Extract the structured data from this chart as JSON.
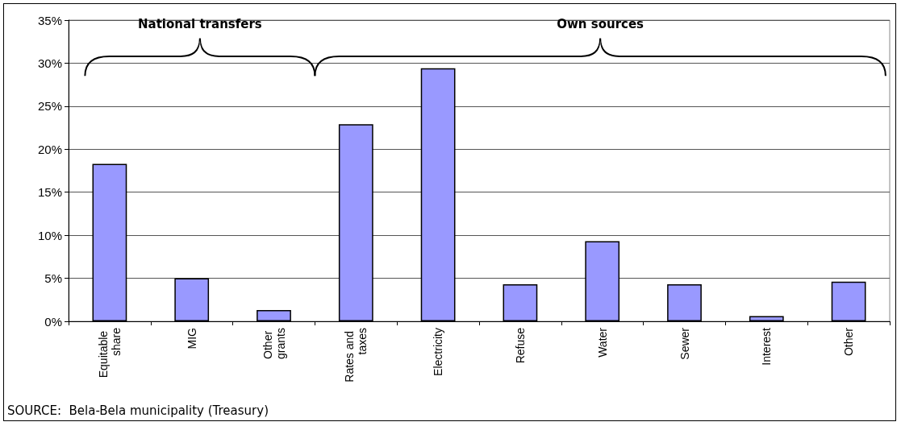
{
  "chart_data": {
    "type": "bar",
    "categories": [
      "Equitable share",
      "MIG",
      "Other grants",
      "Rates and taxes",
      "Electricity",
      "Refuse",
      "Water",
      "Sewer",
      "Interest",
      "Other"
    ],
    "values": [
      18.3,
      5.0,
      1.3,
      22.9,
      29.4,
      4.3,
      9.3,
      4.3,
      0.6,
      4.6
    ],
    "color": "#9999ff",
    "ylim": [
      0,
      35
    ],
    "yticks": [
      {
        "value": 0,
        "label": "0%"
      },
      {
        "value": 5,
        "label": "5%"
      },
      {
        "value": 10,
        "label": "10%"
      },
      {
        "value": 15,
        "label": "15%"
      },
      {
        "value": 20,
        "label": "20%"
      },
      {
        "value": 25,
        "label": "25%"
      },
      {
        "value": 30,
        "label": "30%"
      },
      {
        "value": 35,
        "label": "35%"
      }
    ],
    "grid": "y",
    "annotations": [
      "National transfers",
      "Own sources",
      "SOURCE:  Bela-Bela municipality (Treasury)"
    ]
  }
}
